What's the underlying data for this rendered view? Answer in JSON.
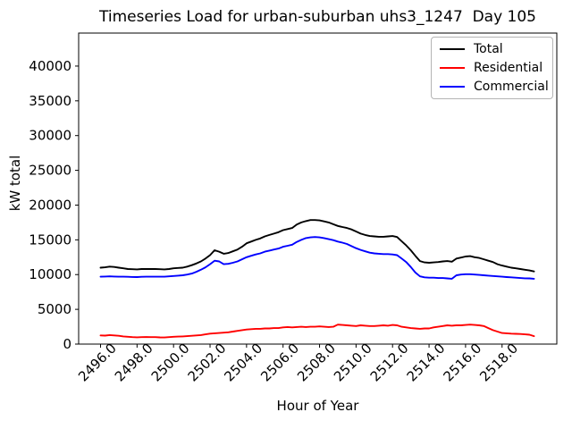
{
  "figure": {
    "background": "#ffffff"
  },
  "title": "Timeseries Load for urban-suburban uhs3_1247  Day 105",
  "xlabel": "Hour of Year",
  "ylabel": "kW total",
  "legend": {
    "position": "upper right",
    "items": [
      {
        "label": "Total",
        "color": "#000000"
      },
      {
        "label": "Residential",
        "color": "#ff0000"
      },
      {
        "label": "Commercial",
        "color": "#0000ff"
      }
    ]
  },
  "chart_data": {
    "type": "line",
    "title": "Timeseries Load for urban-suburban uhs3_1247  Day 105",
    "xlabel": "Hour of Year",
    "ylabel": "kW total",
    "xlim": [
      2494.8,
      2521.0
    ],
    "ylim": [
      0,
      44750
    ],
    "grid": false,
    "legend_position": "upper right",
    "xticks": [
      2496,
      2498,
      2500,
      2502,
      2504,
      2506,
      2508,
      2510,
      2512,
      2514,
      2516,
      2518
    ],
    "xtick_labels": [
      "2496.0",
      "2498.0",
      "2500.0",
      "2502.0",
      "2504.0",
      "2506.0",
      "2508.0",
      "2510.0",
      "2512.0",
      "2514.0",
      "2516.0",
      "2518.0"
    ],
    "yticks": [
      0,
      5000,
      10000,
      15000,
      20000,
      25000,
      30000,
      35000,
      40000
    ],
    "ytick_labels": [
      "0",
      "5000",
      "10000",
      "15000",
      "20000",
      "25000",
      "30000",
      "35000",
      "40000"
    ],
    "x": [
      2496.0,
      2496.25,
      2496.5,
      2496.75,
      2497.0,
      2497.25,
      2497.5,
      2497.75,
      2498.0,
      2498.25,
      2498.5,
      2498.75,
      2499.0,
      2499.25,
      2499.5,
      2499.75,
      2500.0,
      2500.25,
      2500.5,
      2500.75,
      2501.0,
      2501.25,
      2501.5,
      2501.75,
      2502.0,
      2502.25,
      2502.5,
      2502.75,
      2503.0,
      2503.25,
      2503.5,
      2503.75,
      2504.0,
      2504.25,
      2504.5,
      2504.75,
      2505.0,
      2505.25,
      2505.5,
      2505.75,
      2506.0,
      2506.25,
      2506.5,
      2506.75,
      2507.0,
      2507.25,
      2507.5,
      2507.75,
      2508.0,
      2508.25,
      2508.5,
      2508.75,
      2509.0,
      2509.25,
      2509.5,
      2509.75,
      2510.0,
      2510.25,
      2510.5,
      2510.75,
      2511.0,
      2511.25,
      2511.5,
      2511.75,
      2512.0,
      2512.25,
      2512.5,
      2512.75,
      2513.0,
      2513.25,
      2513.5,
      2513.75,
      2514.0,
      2514.25,
      2514.5,
      2514.75,
      2515.0,
      2515.25,
      2515.5,
      2515.75,
      2516.0,
      2516.25,
      2516.5,
      2516.75,
      2517.0,
      2517.25,
      2517.5,
      2517.75,
      2518.0,
      2518.25,
      2518.5,
      2518.75,
      2519.0,
      2519.25,
      2519.5,
      2519.75
    ],
    "series": [
      {
        "name": "Total",
        "color": "#000000",
        "values": [
          11000,
          11050,
          11150,
          11100,
          11000,
          10900,
          10800,
          10780,
          10750,
          10800,
          10820,
          10800,
          10800,
          10780,
          10750,
          10800,
          10900,
          10950,
          11000,
          11150,
          11350,
          11600,
          11900,
          12300,
          12800,
          13500,
          13300,
          13000,
          13100,
          13350,
          13600,
          14000,
          14500,
          14750,
          15000,
          15200,
          15500,
          15700,
          15900,
          16100,
          16400,
          16550,
          16700,
          17200,
          17500,
          17700,
          17850,
          17850,
          17800,
          17650,
          17500,
          17250,
          17000,
          16850,
          16700,
          16500,
          16200,
          15900,
          15700,
          15550,
          15500,
          15450,
          15450,
          15500,
          15550,
          15400,
          14800,
          14200,
          13500,
          12700,
          11950,
          11750,
          11700,
          11750,
          11800,
          11900,
          11950,
          11850,
          12300,
          12450,
          12600,
          12650,
          12500,
          12400,
          12200,
          12000,
          11800,
          11500,
          11300,
          11150,
          11000,
          10900,
          10800,
          10700,
          10600,
          10450
        ]
      },
      {
        "name": "Residential",
        "color": "#ff0000",
        "values": [
          1250,
          1220,
          1300,
          1250,
          1200,
          1100,
          1050,
          1000,
          980,
          1000,
          1020,
          1000,
          1000,
          970,
          950,
          1000,
          1050,
          1080,
          1100,
          1150,
          1200,
          1250,
          1300,
          1400,
          1500,
          1550,
          1600,
          1650,
          1700,
          1800,
          1900,
          2000,
          2100,
          2150,
          2200,
          2200,
          2250,
          2250,
          2300,
          2300,
          2400,
          2450,
          2400,
          2450,
          2500,
          2450,
          2500,
          2500,
          2550,
          2500,
          2450,
          2500,
          2800,
          2750,
          2700,
          2650,
          2600,
          2700,
          2650,
          2600,
          2600,
          2650,
          2700,
          2650,
          2750,
          2700,
          2500,
          2400,
          2300,
          2250,
          2200,
          2250,
          2250,
          2400,
          2500,
          2600,
          2700,
          2650,
          2700,
          2700,
          2750,
          2800,
          2750,
          2700,
          2600,
          2300,
          2000,
          1800,
          1600,
          1550,
          1500,
          1480,
          1450,
          1400,
          1350,
          1150
        ]
      },
      {
        "name": "Commercial",
        "color": "#0000ff",
        "values": [
          9700,
          9720,
          9750,
          9720,
          9700,
          9700,
          9680,
          9660,
          9650,
          9680,
          9700,
          9700,
          9700,
          9700,
          9700,
          9750,
          9800,
          9850,
          9900,
          10000,
          10150,
          10400,
          10700,
          11050,
          11500,
          12000,
          11900,
          11500,
          11550,
          11700,
          11900,
          12200,
          12500,
          12700,
          12900,
          13050,
          13300,
          13450,
          13600,
          13750,
          14000,
          14150,
          14300,
          14700,
          15000,
          15250,
          15350,
          15400,
          15350,
          15250,
          15100,
          14950,
          14750,
          14600,
          14400,
          14100,
          13800,
          13550,
          13350,
          13150,
          13050,
          13000,
          12950,
          12950,
          12900,
          12800,
          12300,
          11800,
          11100,
          10300,
          9750,
          9600,
          9550,
          9550,
          9500,
          9500,
          9450,
          9400,
          9900,
          10000,
          10050,
          10050,
          10000,
          9950,
          9900,
          9850,
          9800,
          9750,
          9700,
          9650,
          9600,
          9550,
          9500,
          9470,
          9450,
          9400
        ]
      }
    ]
  }
}
